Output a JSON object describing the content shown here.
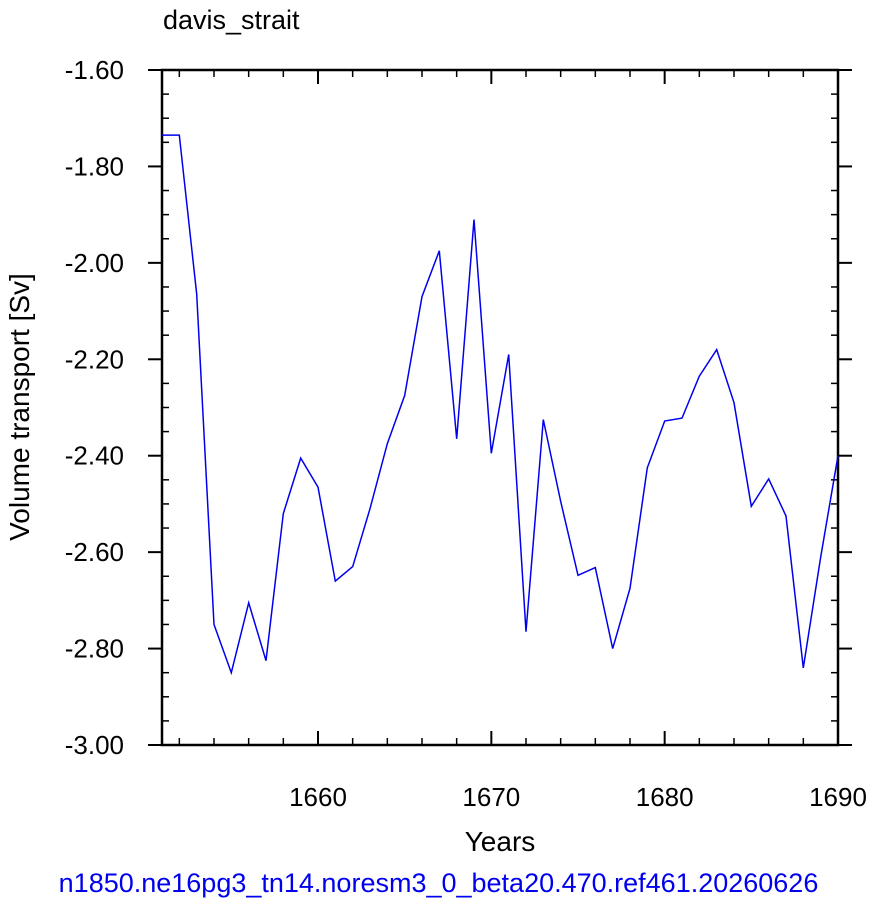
{
  "chart_data": {
    "type": "line",
    "title": "davis_strait",
    "xlabel": "Years",
    "ylabel": "Volume transport [Sv]",
    "xlim": [
      1651,
      1690
    ],
    "ylim": [
      -3.0,
      -1.6
    ],
    "x_ticks": [
      1660,
      1670,
      1680,
      1690
    ],
    "x_tick_labels": [
      "1660",
      "1670",
      "1680",
      "1690"
    ],
    "y_ticks": [
      -1.6,
      -1.8,
      -2.0,
      -2.2,
      -2.4,
      -2.6,
      -2.8,
      -3.0
    ],
    "y_tick_labels": [
      "-1.60",
      "-1.80",
      "-2.00",
      "-2.20",
      "-2.40",
      "-2.60",
      "-2.80",
      "-3.00"
    ],
    "grid": false,
    "legend": "none",
    "series": [
      {
        "color": "#0000ee",
        "x": [
          1651,
          1652,
          1653,
          1654,
          1655,
          1656,
          1657,
          1658,
          1659,
          1660,
          1661,
          1662,
          1663,
          1664,
          1665,
          1666,
          1667,
          1668,
          1669,
          1670,
          1671,
          1672,
          1673,
          1674,
          1675,
          1676,
          1677,
          1678,
          1679,
          1680,
          1681,
          1682,
          1683,
          1684,
          1685,
          1686,
          1687,
          1688,
          1689,
          1690
        ],
        "y": [
          -1.735,
          -1.735,
          -2.065,
          -2.75,
          -2.85,
          -2.705,
          -2.825,
          -2.52,
          -2.405,
          -2.465,
          -2.66,
          -2.63,
          -2.51,
          -2.375,
          -2.275,
          -2.07,
          -1.975,
          -2.365,
          -1.91,
          -2.395,
          -2.19,
          -2.765,
          -2.325,
          -2.495,
          -2.648,
          -2.632,
          -2.8,
          -2.675,
          -2.425,
          -2.328,
          -2.322,
          -2.235,
          -2.18,
          -2.29,
          -2.505,
          -2.448,
          -2.525,
          -2.84,
          -2.61,
          -2.4
        ]
      }
    ]
  },
  "footer": {
    "text": "n1850.ne16pg3_tn14.noresm3_0_beta20.470.ref461.20260626",
    "color": "#0000ee"
  }
}
